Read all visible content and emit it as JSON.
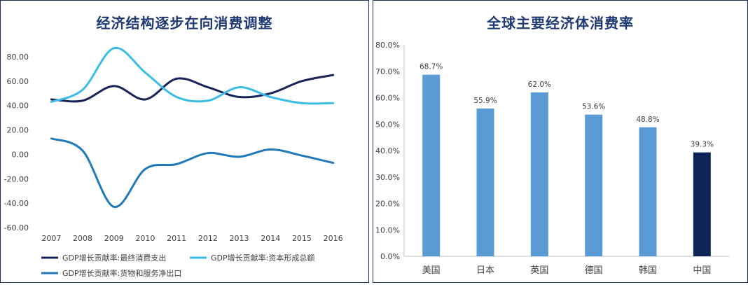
{
  "colors": {
    "series1": "#17245a",
    "series2": "#3cbde6",
    "series3": "#2079b8",
    "bar": "#5b9bd5",
    "bar_highlight": "#0e2356",
    "frame": "#1f2f5c"
  },
  "chart_data": [
    {
      "type": "line",
      "title": "经济结构逐步在向消费调整",
      "xlabel": "",
      "ylabel": "",
      "x": [
        "2007",
        "2008",
        "2009",
        "2010",
        "2011",
        "2012",
        "2013",
        "2014",
        "2015",
        "2016"
      ],
      "ylim": [
        -60,
        80
      ],
      "yticks": [
        "80.00",
        "60.00",
        "40.00",
        "20.00",
        "0.00",
        "-20.00",
        "-40.00",
        "-60.00"
      ],
      "ytick_values": [
        80,
        60,
        40,
        20,
        0,
        -20,
        -40,
        -60
      ],
      "grid": false,
      "legend_position": "bottom",
      "series": [
        {
          "name": "GDP增长贡献率:最终消费支出",
          "values": [
            45,
            44,
            56,
            45,
            62,
            55,
            47,
            50,
            60,
            65
          ]
        },
        {
          "name": "GDP增长贡献率:资本形成总额",
          "values": [
            43,
            53,
            87,
            67,
            47,
            44,
            55,
            47,
            42,
            42
          ]
        },
        {
          "name": "GDP增长贡献率:货物和服务净出口",
          "values": [
            13,
            3,
            -43,
            -12,
            -8,
            1,
            -2,
            4,
            -1,
            -7
          ]
        }
      ]
    },
    {
      "type": "bar",
      "title": "全球主要经济体消费率",
      "xlabel": "",
      "ylabel": "",
      "categories": [
        "美国",
        "日本",
        "英国",
        "德国",
        "韩国",
        "中国"
      ],
      "values": [
        68.7,
        55.9,
        62.0,
        53.6,
        48.8,
        39.3
      ],
      "value_labels": [
        "68.7%",
        "55.9%",
        "62.0%",
        "53.6%",
        "48.8%",
        "39.3%"
      ],
      "highlight_category": "中国",
      "ylim": [
        0,
        80
      ],
      "yticks": [
        "80.0%",
        "70.0%",
        "60.0%",
        "50.0%",
        "40.0%",
        "30.0%",
        "20.0%",
        "10.0%",
        "0.0%"
      ],
      "ytick_values": [
        80,
        70,
        60,
        50,
        40,
        30,
        20,
        10,
        0
      ],
      "grid": false,
      "legend_position": "none"
    }
  ]
}
